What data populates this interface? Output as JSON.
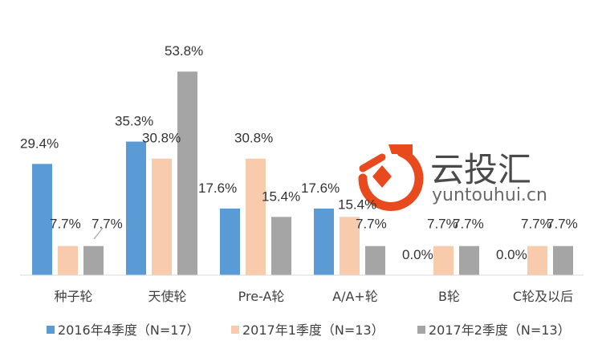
{
  "chart_data": {
    "type": "bar",
    "categories": [
      "种子轮",
      "天使轮",
      "Pre-A轮",
      "A/A+轮",
      "B轮",
      "C轮及以后"
    ],
    "series": [
      {
        "name": "2016年4季度（N=17）",
        "values": [
          29.4,
          35.3,
          17.6,
          17.6,
          0.0,
          0.0
        ],
        "labels": [
          "29.4%",
          "35.3%",
          "17.6%",
          "17.6%",
          "0.0%",
          "0.0%"
        ],
        "color": "#5b9bd5"
      },
      {
        "name": "2017年1季度（N=13）",
        "values": [
          7.7,
          30.8,
          30.8,
          15.4,
          7.7,
          7.7
        ],
        "labels": [
          "7.7%",
          "30.8%",
          "30.8%",
          "15.4%",
          "7.7%",
          "7.7%"
        ],
        "color": "#f8cbad"
      },
      {
        "name": "2017年2季度（N=13）",
        "values": [
          7.7,
          53.8,
          15.4,
          7.7,
          7.7,
          7.7
        ],
        "labels": [
          "7.7%",
          "53.8%",
          "15.4%",
          "7.7%",
          "7.7%",
          "7.7%"
        ],
        "color": "#a5a5a5"
      }
    ],
    "ylim": [
      0,
      60
    ],
    "grid": false,
    "legend": "bottom"
  },
  "watermark": {
    "name_cn": "云投汇",
    "domain": "yuntouhui.cn",
    "color": "#e8491d"
  }
}
